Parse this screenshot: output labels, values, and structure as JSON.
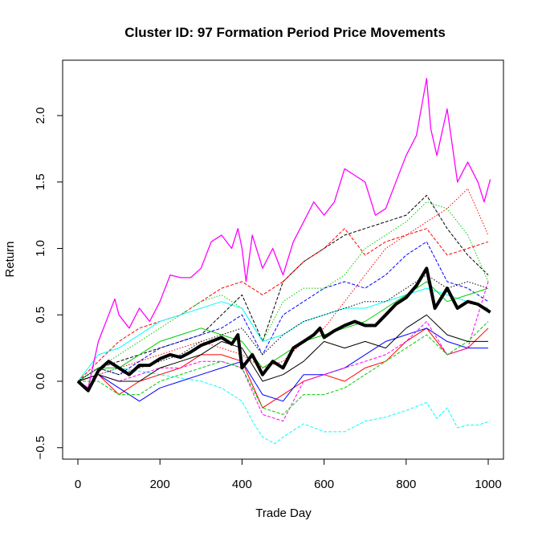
{
  "chart_data": {
    "type": "line",
    "title": "Cluster ID: 97 Formation Period Price Movements",
    "xlabel": "Trade Day",
    "ylabel": "Return",
    "xlim": [
      0,
      1000
    ],
    "ylim": [
      -0.5,
      2.25
    ],
    "xticks": [
      "0",
      "200",
      "400",
      "600",
      "800",
      "1000"
    ],
    "yticks": [
      "-0.5",
      "0.0",
      "0.5",
      "1.0",
      "1.5",
      "2.0"
    ],
    "grid": false,
    "series": [
      {
        "color": "#00ffff",
        "style": "dashed",
        "width": 1,
        "x": [
          0,
          100,
          200,
          300,
          350,
          400,
          425,
          450,
          480,
          500,
          550,
          600,
          650,
          700,
          750,
          800,
          850,
          875,
          900,
          925,
          950,
          975,
          1005
        ],
        "y": [
          0,
          0.1,
          0.05,
          0.0,
          -0.05,
          -0.15,
          -0.3,
          -0.42,
          -0.47,
          -0.42,
          -0.32,
          -0.38,
          -0.38,
          -0.3,
          -0.27,
          -0.22,
          -0.16,
          -0.28,
          -0.2,
          -0.35,
          -0.33,
          -0.33,
          -0.3
        ]
      },
      {
        "color": "#000000",
        "style": "dashed",
        "width": 1,
        "x_step": 50,
        "y": [
          0,
          0.1,
          0.15,
          0.2,
          0.25,
          0.3,
          0.35,
          0.5,
          0.65,
          0.3,
          0.75,
          0.9,
          1.0,
          1.1,
          1.15,
          1.2,
          1.25,
          1.4,
          1.15,
          0.95,
          0.8
        ]
      },
      {
        "color": "#ff0000",
        "style": "dashed",
        "width": 1,
        "x_step": 50,
        "y": [
          0,
          0.15,
          0.3,
          0.4,
          0.45,
          0.5,
          0.6,
          0.7,
          0.75,
          0.65,
          0.75,
          0.9,
          1.0,
          1.15,
          0.95,
          1.05,
          1.1,
          1.15,
          0.95,
          1.0,
          1.05
        ]
      },
      {
        "color": "#00cc00",
        "style": "dotted",
        "width": 1,
        "x_step": 50,
        "y": [
          0,
          0.1,
          0.2,
          0.3,
          0.4,
          0.5,
          0.6,
          0.65,
          0.55,
          0.3,
          0.6,
          0.7,
          0.7,
          0.8,
          1.0,
          1.1,
          1.2,
          1.35,
          1.3,
          1.1,
          0.75
        ]
      },
      {
        "color": "#ff0000",
        "style": "dotted",
        "width": 1,
        "x_step": 50,
        "y": [
          0,
          0.05,
          0.1,
          0.15,
          0.2,
          0.25,
          0.3,
          0.25,
          0.2,
          0.1,
          0.15,
          0.3,
          0.4,
          0.6,
          0.8,
          1.0,
          1.1,
          1.2,
          1.3,
          1.45,
          1.1
        ]
      },
      {
        "color": "#0000ff",
        "style": "dashed",
        "width": 1,
        "x_step": 50,
        "y": [
          0,
          0.1,
          0.05,
          0.15,
          0.25,
          0.3,
          0.35,
          0.4,
          0.5,
          0.2,
          0.5,
          0.6,
          0.7,
          0.75,
          0.7,
          0.8,
          0.95,
          1.05,
          0.75,
          0.7,
          0.6
        ]
      },
      {
        "color": "#00ffff",
        "style": "solid",
        "width": 1,
        "x_step": 50,
        "y": [
          0,
          0.2,
          0.25,
          0.35,
          0.45,
          0.5,
          0.55,
          0.6,
          0.55,
          0.3,
          0.35,
          0.45,
          0.5,
          0.55,
          0.55,
          0.6,
          0.65,
          0.7,
          0.65,
          0.6,
          0.55
        ]
      },
      {
        "color": "#00cc00",
        "style": "solid",
        "width": 1,
        "x_step": 50,
        "y": [
          0,
          0.1,
          0.1,
          0.2,
          0.3,
          0.35,
          0.4,
          0.35,
          0.3,
          0.1,
          0.2,
          0.3,
          0.35,
          0.4,
          0.45,
          0.55,
          0.65,
          0.75,
          0.6,
          0.65,
          0.7
        ]
      },
      {
        "color": "#ff0000",
        "style": "solid",
        "width": 1,
        "x_step": 50,
        "y": [
          0,
          0.05,
          -0.1,
          0.0,
          0.05,
          0.1,
          0.2,
          0.2,
          0.15,
          -0.2,
          -0.1,
          0.0,
          0.05,
          0.0,
          0.1,
          0.15,
          0.3,
          0.4,
          0.2,
          0.25,
          0.4
        ]
      },
      {
        "color": "#0000ff",
        "style": "solid",
        "width": 1,
        "x_step": 50,
        "y": [
          0,
          0.05,
          -0.05,
          -0.15,
          -0.05,
          0.0,
          0.05,
          0.1,
          0.15,
          -0.1,
          -0.15,
          0.05,
          0.05,
          0.1,
          0.2,
          0.3,
          0.35,
          0.4,
          0.3,
          0.25,
          0.25
        ]
      },
      {
        "color": "#ff00ff",
        "style": "dashed",
        "width": 1,
        "x_step": 50,
        "y": [
          0,
          0.05,
          0.0,
          0.05,
          0.1,
          0.1,
          0.15,
          0.15,
          0.1,
          -0.25,
          -0.3,
          0.0,
          0.05,
          0.1,
          0.15,
          0.2,
          0.3,
          0.45,
          0.2,
          0.25,
          0.75
        ]
      },
      {
        "color": "#00cc00",
        "style": "dashed",
        "width": 1,
        "x_step": 50,
        "y": [
          0,
          0.0,
          -0.1,
          -0.1,
          0.0,
          0.05,
          0.1,
          0.15,
          0.1,
          -0.2,
          -0.25,
          -0.1,
          -0.1,
          -0.05,
          0.05,
          0.15,
          0.25,
          0.35,
          0.2,
          0.3,
          0.45
        ]
      },
      {
        "color": "#000000",
        "style": "solid",
        "width": 1,
        "x_step": 50,
        "y": [
          0,
          0.05,
          0.0,
          0.0,
          0.1,
          0.15,
          0.2,
          0.3,
          0.25,
          0.0,
          0.05,
          0.15,
          0.3,
          0.25,
          0.3,
          0.25,
          0.4,
          0.5,
          0.35,
          0.3,
          0.3
        ]
      },
      {
        "color": "#000000",
        "style": "dotted",
        "width": 1,
        "x_step": 50,
        "y": [
          0,
          0.1,
          0.05,
          0.1,
          0.15,
          0.2,
          0.3,
          0.35,
          0.4,
          0.2,
          0.35,
          0.45,
          0.5,
          0.55,
          0.6,
          0.6,
          0.7,
          0.8,
          0.7,
          0.75,
          0.7
        ]
      },
      {
        "color": "#ff00ff",
        "style": "solid",
        "width": 1.3,
        "x": [
          0,
          25,
          50,
          75,
          90,
          100,
          125,
          150,
          175,
          200,
          225,
          250,
          275,
          300,
          325,
          350,
          375,
          390,
          400,
          410,
          425,
          450,
          475,
          500,
          525,
          550,
          575,
          600,
          625,
          650,
          675,
          700,
          725,
          750,
          775,
          800,
          825,
          850,
          860,
          875,
          900,
          925,
          950,
          975,
          990,
          1005
        ],
        "y": [
          0,
          -0.05,
          0.3,
          0.5,
          0.62,
          0.5,
          0.4,
          0.55,
          0.45,
          0.6,
          0.8,
          0.78,
          0.78,
          0.85,
          1.05,
          1.1,
          1.0,
          1.15,
          1.0,
          0.75,
          1.1,
          0.85,
          1.0,
          0.8,
          1.05,
          1.2,
          1.35,
          1.25,
          1.35,
          1.6,
          1.55,
          1.5,
          1.25,
          1.3,
          1.5,
          1.7,
          1.85,
          2.28,
          1.9,
          1.7,
          2.05,
          1.5,
          1.65,
          1.5,
          1.35,
          1.52
        ]
      },
      {
        "color": "#000000",
        "style": "solid",
        "width": 4,
        "x": [
          0,
          25,
          50,
          75,
          100,
          125,
          150,
          175,
          200,
          225,
          250,
          275,
          300,
          325,
          350,
          375,
          390,
          400,
          425,
          450,
          475,
          500,
          525,
          550,
          575,
          590,
          600,
          625,
          650,
          675,
          700,
          725,
          750,
          775,
          800,
          825,
          850,
          870,
          900,
          925,
          950,
          975,
          1005
        ],
        "y": [
          0,
          -0.07,
          0.08,
          0.15,
          0.1,
          0.05,
          0.12,
          0.12,
          0.17,
          0.2,
          0.18,
          0.22,
          0.27,
          0.3,
          0.33,
          0.28,
          0.35,
          0.1,
          0.2,
          0.05,
          0.15,
          0.1,
          0.25,
          0.3,
          0.35,
          0.4,
          0.33,
          0.38,
          0.42,
          0.45,
          0.42,
          0.42,
          0.5,
          0.58,
          0.63,
          0.72,
          0.85,
          0.55,
          0.7,
          0.55,
          0.6,
          0.58,
          0.52
        ]
      }
    ]
  }
}
